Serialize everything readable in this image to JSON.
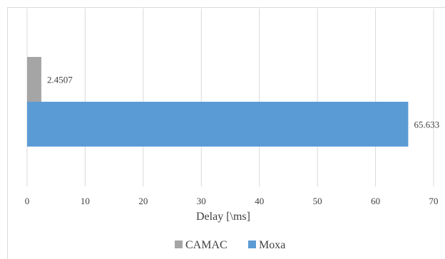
{
  "chart_data": {
    "type": "bar",
    "orientation": "horizontal",
    "xlabel": "Delay [\\ms]",
    "xlim": [
      0,
      70
    ],
    "xticks": [
      0,
      10,
      20,
      30,
      40,
      50,
      60,
      70
    ],
    "grid": true,
    "legend_position": "bottom",
    "categories": [
      ""
    ],
    "series": [
      {
        "name": "CAMAC",
        "values": [
          2.4507
        ],
        "label": "2.4507",
        "color": "#a5a5a5"
      },
      {
        "name": "Moxa",
        "values": [
          65.633
        ],
        "label": "65.633",
        "color": "#5b9bd5"
      }
    ]
  }
}
